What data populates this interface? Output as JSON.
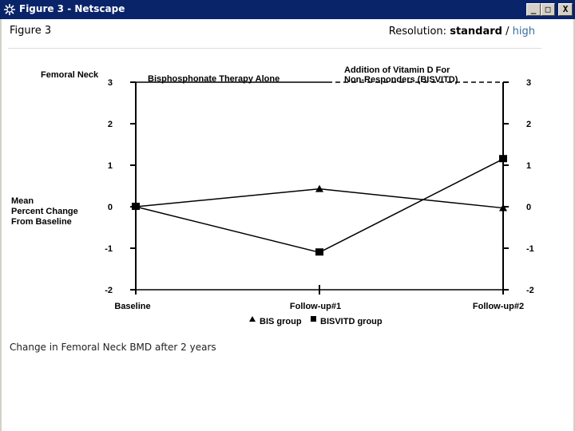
{
  "window": {
    "title": "Figure 3 - Netscape",
    "min_label": "_",
    "max_label": "□",
    "close_label": "X"
  },
  "header": {
    "figure_title": "Figure 3",
    "resolution_label": "Resolution:",
    "resolution_standard": "standard",
    "resolution_separator": "/",
    "resolution_high": "high"
  },
  "caption": "Change in Femoral Neck BMD after 2 years",
  "colors": {
    "titlebar": "#0a246a",
    "link": "#3a6e9a",
    "series": "#000000"
  },
  "chart_data": {
    "type": "line",
    "site_label": "Femoral Neck",
    "ylabel_lines": [
      "Mean",
      "Percent Change",
      "From Baseline"
    ],
    "phase_labels": [
      "Bisphosphonate Therapy Alone",
      "Addition of Vitamin D For",
      "Non-Responders (BISVITD)"
    ],
    "categories": [
      "Baseline",
      "Follow-up#1",
      "Follow-up#2"
    ],
    "ylim": [
      -2,
      3
    ],
    "yticks": [
      "3",
      "2",
      "1",
      "0",
      "-1",
      "-2"
    ],
    "series": [
      {
        "name": "BIS group",
        "marker": "triangle",
        "values": [
          0,
          0.43,
          -0.03
        ]
      },
      {
        "name": "BISVITD group",
        "marker": "square",
        "values": [
          0,
          -1.1,
          1.15
        ]
      }
    ]
  }
}
